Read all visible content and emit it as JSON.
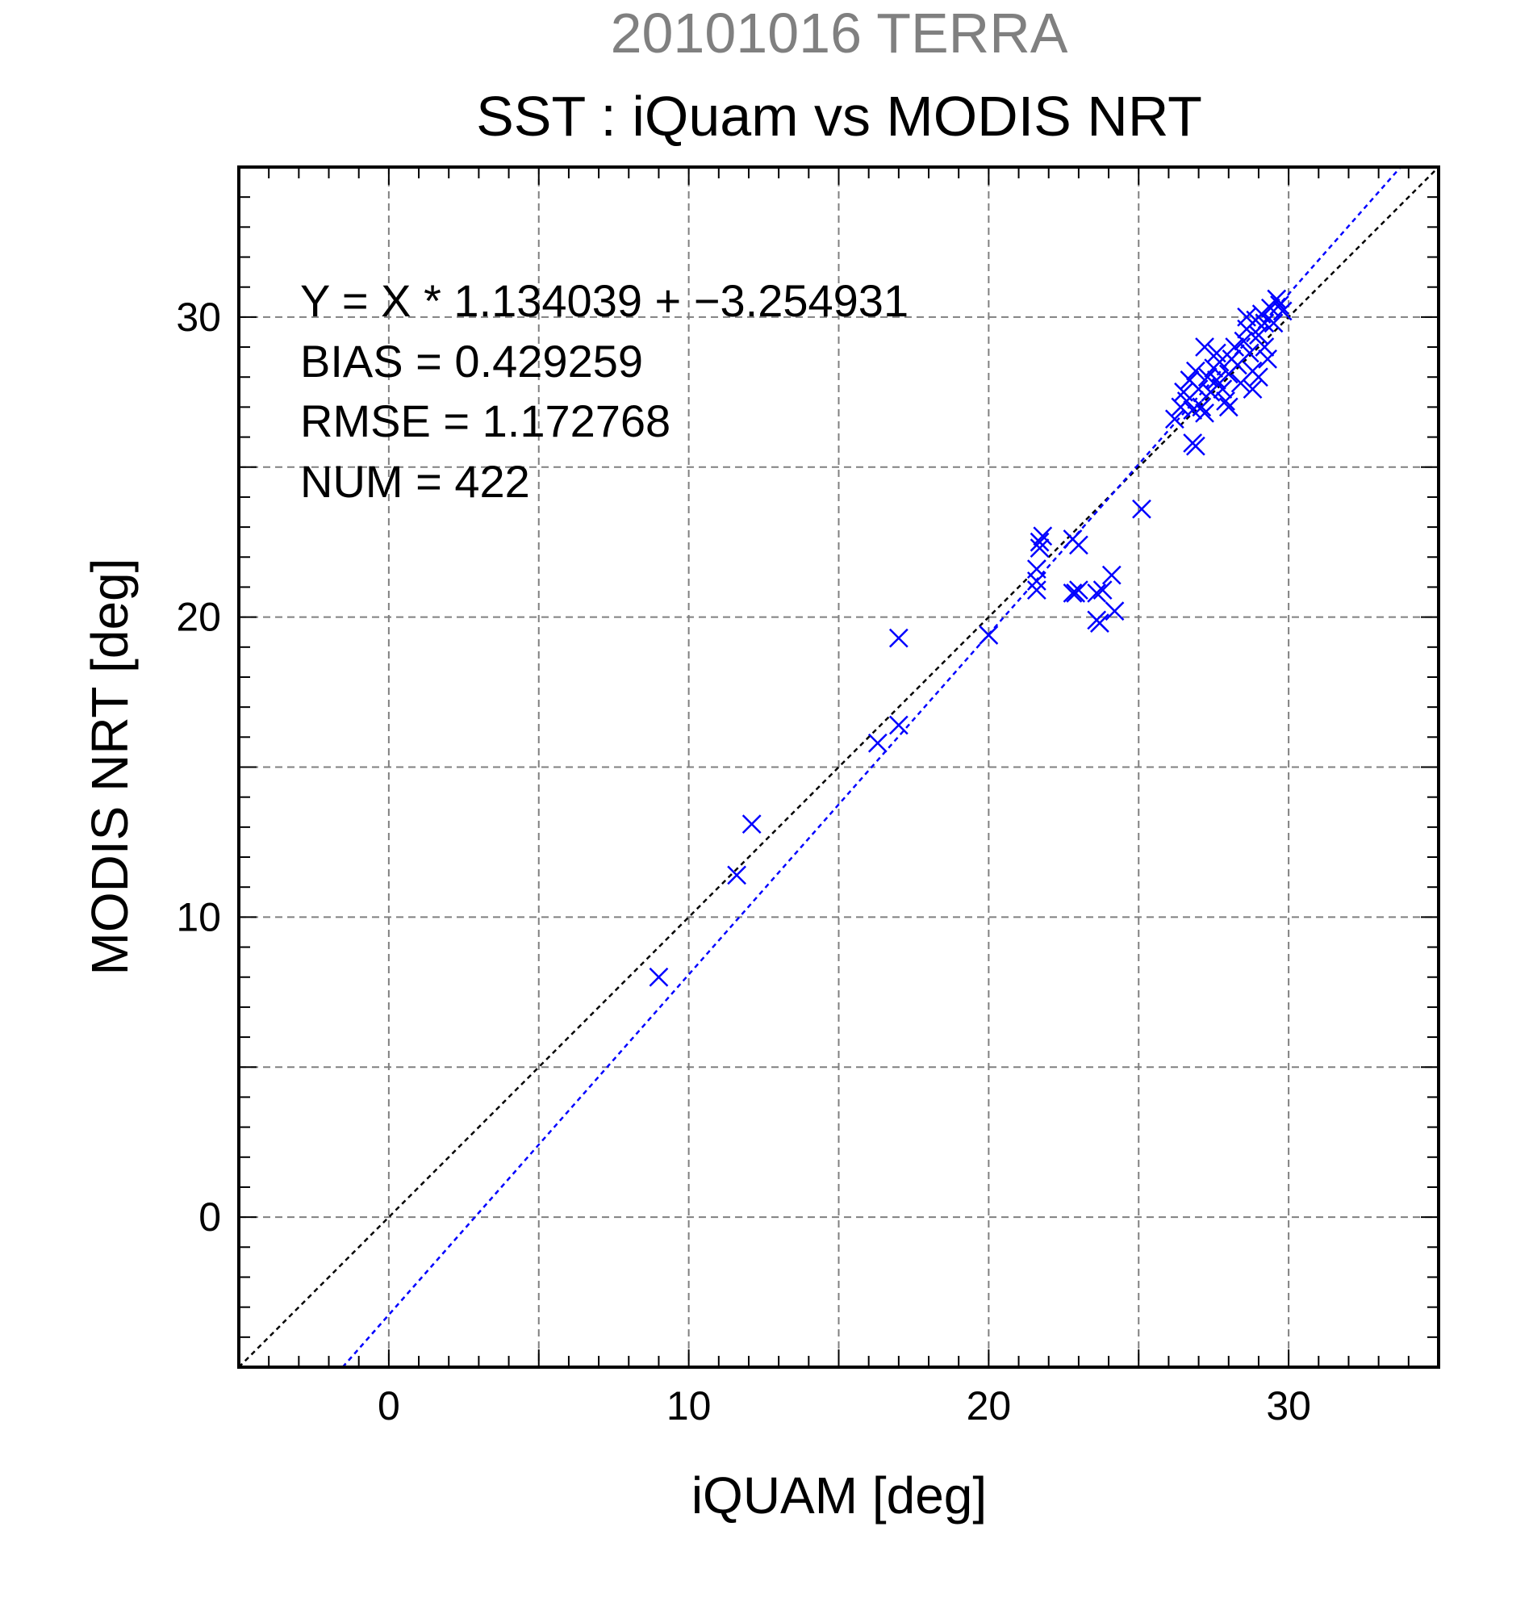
{
  "chart_data": {
    "type": "scatter",
    "title": "20101016 TERRA",
    "subtitle": "SST : iQuam vs MODIS NRT",
    "xlabel": "iQUAM [deg]",
    "ylabel": "MODIS NRT [deg]",
    "xlim": [
      -5,
      35
    ],
    "ylim": [
      -5,
      35
    ],
    "xticks": [
      0,
      10,
      20,
      30
    ],
    "yticks": [
      0,
      10,
      20,
      30
    ],
    "tick_labels_x": [
      "0",
      "10",
      "20",
      "30"
    ],
    "tick_labels_y": [
      "0",
      "10",
      "20",
      "30"
    ],
    "minor_tick_step": 1,
    "grid": true,
    "grid_step": 5,
    "marker": "x",
    "marker_color": "#0000ff",
    "fit_color": "#0000ff",
    "identity_color": "#000000",
    "fit": {
      "slope": 1.134039,
      "intercept": -3.254931
    },
    "stats": [
      "Y = X * 1.134039 + −3.254931",
      "BIAS = 0.429259",
      "RMSE = 1.172768",
      "NUM = 422"
    ],
    "points": [
      [
        9.0,
        8.0
      ],
      [
        11.6,
        11.4
      ],
      [
        12.1,
        13.1
      ],
      [
        16.3,
        15.8
      ],
      [
        17.0,
        16.4
      ],
      [
        17.0,
        19.3
      ],
      [
        20.0,
        19.4
      ],
      [
        21.6,
        20.9
      ],
      [
        21.6,
        21.2
      ],
      [
        21.6,
        21.6
      ],
      [
        21.7,
        22.5
      ],
      [
        21.8,
        22.7
      ],
      [
        21.7,
        22.3
      ],
      [
        22.8,
        22.6
      ],
      [
        23.0,
        22.4
      ],
      [
        22.8,
        20.8
      ],
      [
        22.9,
        20.8
      ],
      [
        23.0,
        20.9
      ],
      [
        23.6,
        20.8
      ],
      [
        23.8,
        20.9
      ],
      [
        23.6,
        19.9
      ],
      [
        23.7,
        19.8
      ],
      [
        24.2,
        20.2
      ],
      [
        24.1,
        21.4
      ],
      [
        25.1,
        23.6
      ],
      [
        26.2,
        26.6
      ],
      [
        26.4,
        27.0
      ],
      [
        26.5,
        27.5
      ],
      [
        26.6,
        27.2
      ],
      [
        26.7,
        27.9
      ],
      [
        26.8,
        26.9
      ],
      [
        26.8,
        25.8
      ],
      [
        26.9,
        25.7
      ],
      [
        26.9,
        28.2
      ],
      [
        27.0,
        27.6
      ],
      [
        27.1,
        27.0
      ],
      [
        27.2,
        26.8
      ],
      [
        27.3,
        28.0
      ],
      [
        27.4,
        27.5
      ],
      [
        27.5,
        28.3
      ],
      [
        27.6,
        27.9
      ],
      [
        27.7,
        28.5
      ],
      [
        27.8,
        27.6
      ],
      [
        27.9,
        27.2
      ],
      [
        28.0,
        28.1
      ],
      [
        28.1,
        28.6
      ],
      [
        28.2,
        29.0
      ],
      [
        28.3,
        28.4
      ],
      [
        28.4,
        27.8
      ],
      [
        28.5,
        29.2
      ],
      [
        28.6,
        29.6
      ],
      [
        28.7,
        28.8
      ],
      [
        28.8,
        28.2
      ],
      [
        28.9,
        29.9
      ],
      [
        29.0,
        29.4
      ],
      [
        29.1,
        30.1
      ],
      [
        29.2,
        29.0
      ],
      [
        29.3,
        28.6
      ],
      [
        29.4,
        30.3
      ],
      [
        29.5,
        29.8
      ],
      [
        29.6,
        30.6
      ],
      [
        29.7,
        30.4
      ],
      [
        29.8,
        30.2
      ],
      [
        27.2,
        29.0
      ],
      [
        27.6,
        28.8
      ],
      [
        28.0,
        27.0
      ],
      [
        28.8,
        27.6
      ],
      [
        29.0,
        28.0
      ],
      [
        29.2,
        29.8
      ],
      [
        28.6,
        30.0
      ]
    ]
  }
}
